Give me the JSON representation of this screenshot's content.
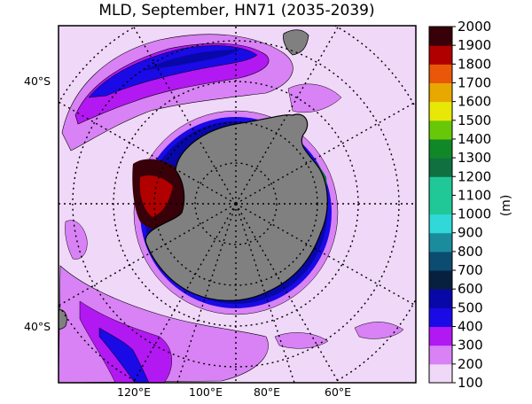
{
  "title": "MLD, September, HN71 (2035-2039)",
  "colorbar": {
    "unit_label": "(m)",
    "ticks": [
      "100",
      "200",
      "300",
      "400",
      "500",
      "600",
      "700",
      "800",
      "900",
      "1000",
      "1100",
      "1200",
      "1300",
      "1400",
      "1500",
      "1600",
      "1700",
      "1800",
      "1900",
      "2000"
    ],
    "colors": [
      "#f0d8f8",
      "#d882f5",
      "#b218f2",
      "#1a0ae6",
      "#0808a8",
      "#082040",
      "#0c4c70",
      "#1a8c9c",
      "#30d8d8",
      "#20c898",
      "#107040",
      "#108828",
      "#68c808",
      "#e8e808",
      "#e8a800",
      "#e85808",
      "#b00000",
      "#380008"
    ]
  },
  "map_labels": {
    "lat_top": "40°S",
    "lat_bottom": "40°S",
    "lon_labels": [
      "120°E",
      "100°E",
      "80°E",
      "60°E"
    ]
  },
  "map_colors": {
    "land": "#808080",
    "ocean_low": "#f0d8f8"
  }
}
